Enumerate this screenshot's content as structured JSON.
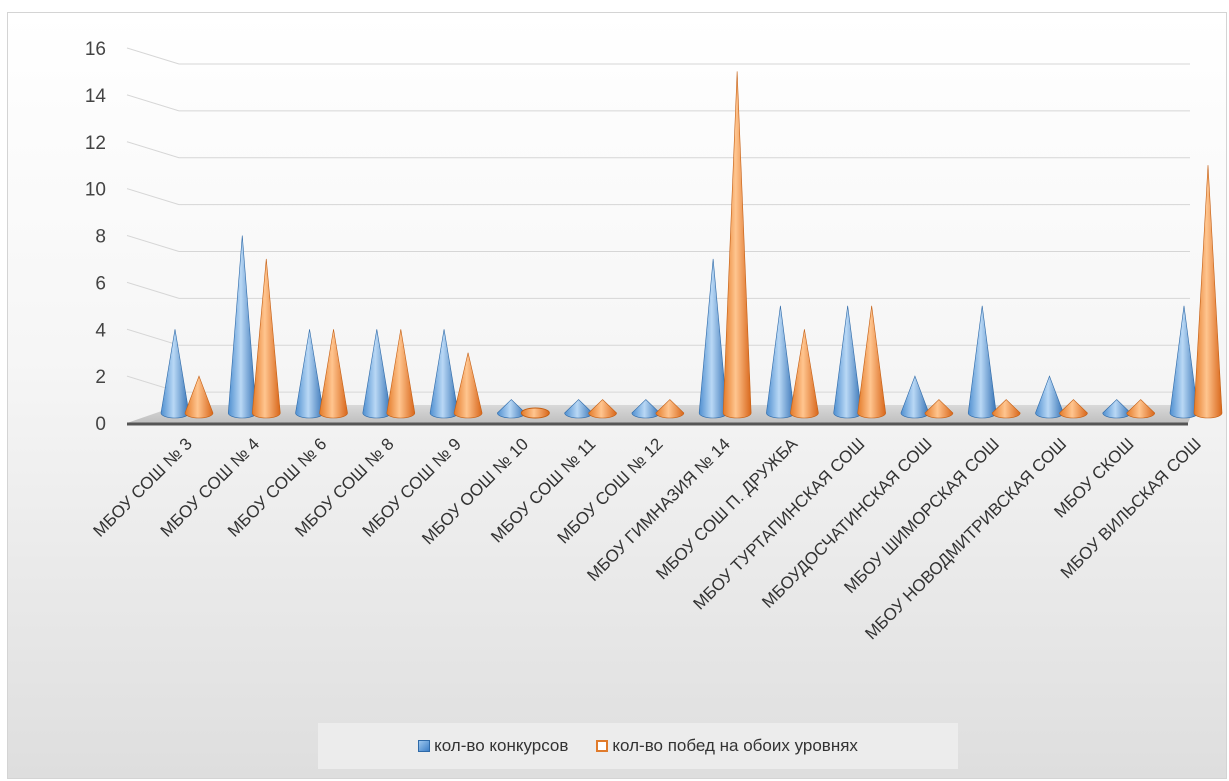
{
  "chart_data": {
    "type": "bar",
    "subtype": "3d-cone",
    "categories": [
      "МБОУ СОШ № 3",
      "МБОУ СОШ № 4",
      "МБОУ СОШ № 6",
      "МБОУ СОШ № 8",
      "МБОУ СОШ № 9",
      "МБОУ ООШ № 10",
      "МБОУ СОШ № 11",
      "МБОУ СОШ № 12",
      "МБОУ ГИМНАЗИЯ № 14",
      "МБОУ СОШ П. ДРУЖБА",
      "МБОУ ТУРТАПИНСКАЯ СОШ",
      "МБОУДОСЧАТИНСКАЯ СОШ",
      "МБОУ ШИМОРСКАЯ СОШ",
      "МБОУ НОВОДМИТРИВСКАЯ СОШ",
      "МБОУ СКОШ",
      "МБОУ ВИЛЬСКАЯ СОШ"
    ],
    "series": [
      {
        "name": "кол-во  конкурсов",
        "color": "#5b9bd5",
        "values": [
          4,
          8,
          4,
          4,
          4,
          1,
          1,
          1,
          7,
          5,
          5,
          2,
          5,
          2,
          1,
          5
        ]
      },
      {
        "name": "кол-во побед на обоих уровнях",
        "color": "#ed7d31",
        "values": [
          2,
          7,
          4,
          4,
          3,
          0,
          1,
          1,
          15,
          4,
          5,
          1,
          1,
          1,
          1,
          11
        ]
      }
    ],
    "ylim": [
      0,
      16
    ],
    "yticks": [
      "0",
      "2",
      "4",
      "6",
      "8",
      "10",
      "12",
      "14",
      "16"
    ],
    "grid": true,
    "legend_position": "bottom",
    "title": "",
    "xlabel": "",
    "ylabel": ""
  }
}
